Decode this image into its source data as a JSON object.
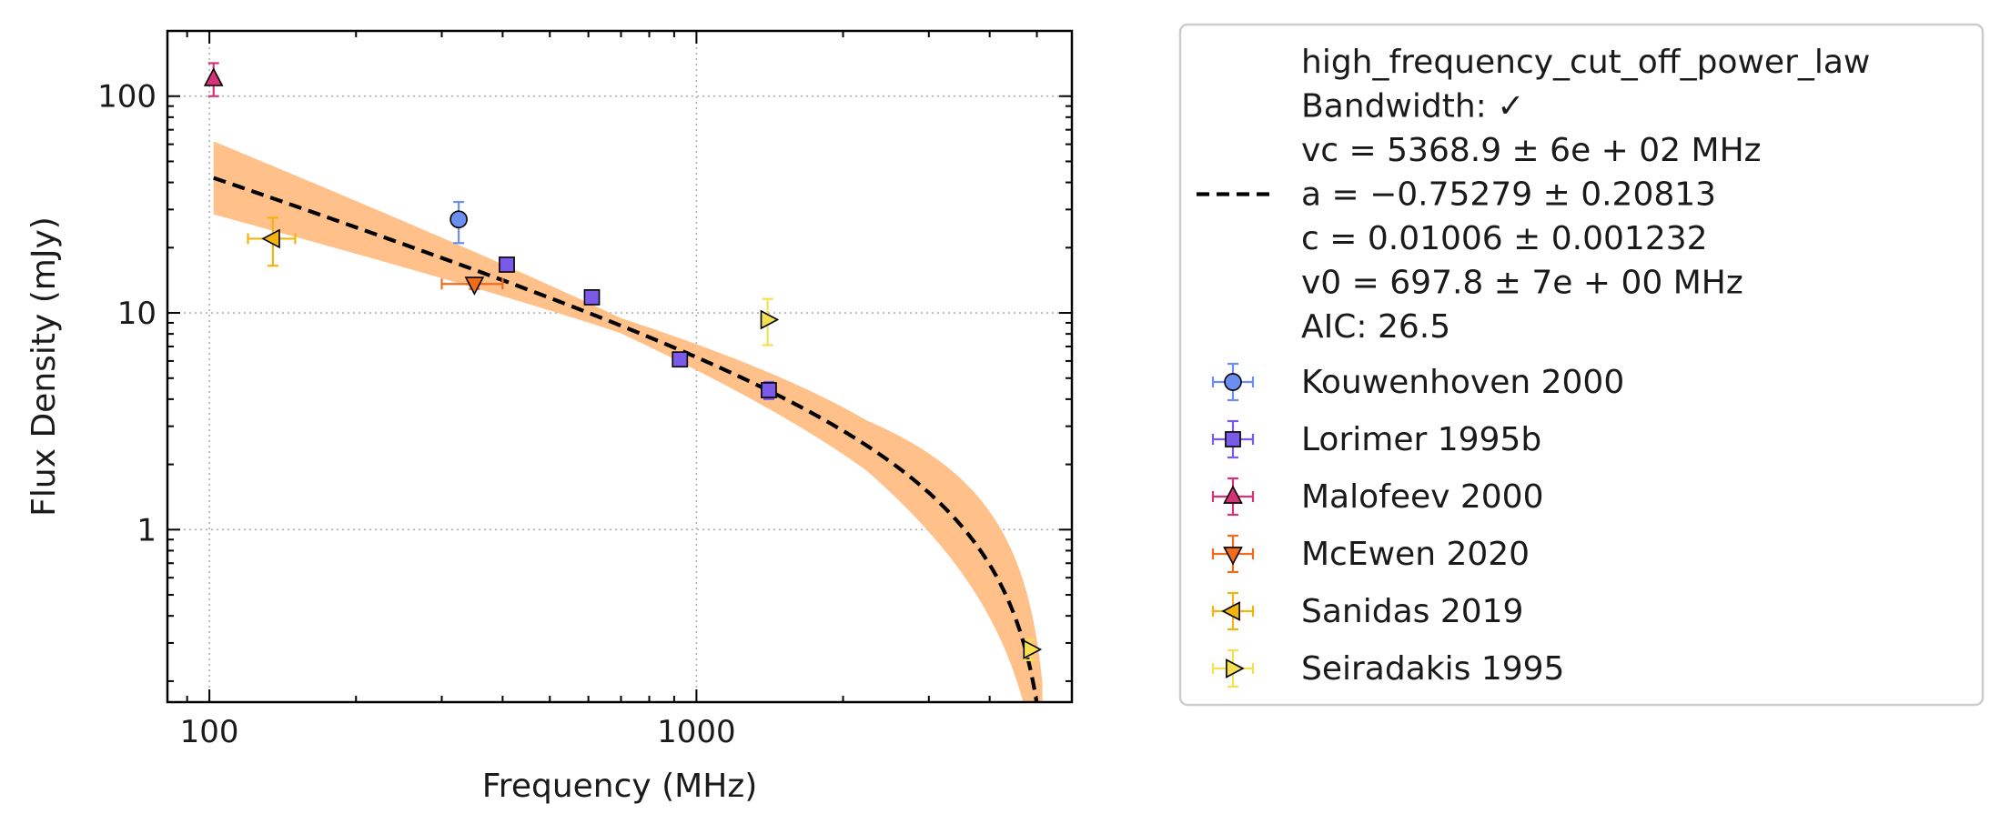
{
  "chart_data": {
    "type": "scatter",
    "xlabel": "Frequency (MHz)",
    "ylabel": "Flux Density (mJy)",
    "x_scale": "log",
    "y_scale": "log",
    "xlim": [
      82,
      5900
    ],
    "ylim": [
      0.16,
      200
    ],
    "grid": true,
    "legend_position": "outside-right",
    "x_ticks": [
      {
        "value": 100,
        "label": "100"
      },
      {
        "value": 1000,
        "label": "1000"
      }
    ],
    "y_ticks": [
      {
        "value": 1,
        "label": "1"
      },
      {
        "value": 10,
        "label": "10"
      },
      {
        "value": 100,
        "label": "100"
      }
    ],
    "fit": {
      "model": "high_frequency_cut_off_power_law",
      "vc": 5368.9,
      "a": -0.75279,
      "c": 0.01006,
      "v0": 697.8,
      "legend_lines": [
        "high_frequency_cut_off_power_law",
        "Bandwidth: ✓",
        "vc = 5368.9 ± 6e + 02 MHz",
        "a = −0.75279 ± 0.20813",
        "c = 0.01006 ± 0.001232",
        "v0 = 697.8 ± 7e + 00 MHz",
        "AIC: 26.5"
      ],
      "line_color": "#000000",
      "band_color": "#ffc08a"
    },
    "series": [
      {
        "name": "Kouwenhoven 2000",
        "marker": "circle",
        "color": "#6a8ff0",
        "ecolor": "#6a8ff0",
        "points": [
          {
            "x": 325,
            "y": 27,
            "yerr": [
              6,
              5.5
            ],
            "xerr": [
              0,
              0
            ]
          }
        ]
      },
      {
        "name": "Lorimer 1995b",
        "marker": "square",
        "color": "#7a5ae6",
        "ecolor": "#7a5ae6",
        "points": [
          {
            "x": 408,
            "y": 16.7,
            "yerr": [
              0.8,
              0.8
            ],
            "xerr": [
              0,
              0
            ]
          },
          {
            "x": 610,
            "y": 11.8,
            "yerr": [
              0.6,
              0.6
            ],
            "xerr": [
              0,
              0
            ]
          },
          {
            "x": 925,
            "y": 6.1,
            "yerr": [
              0.3,
              0.3
            ],
            "xerr": [
              0,
              0
            ]
          },
          {
            "x": 1408,
            "y": 4.4,
            "yerr": [
              0.4,
              0.4
            ],
            "xerr": [
              0,
              0
            ]
          }
        ]
      },
      {
        "name": "Malofeev 2000",
        "marker": "triangle-up",
        "color": "#d6327a",
        "ecolor": "#d6327a",
        "points": [
          {
            "x": 102,
            "y": 120,
            "yerr": [
              20,
              22
            ],
            "xerr": [
              0,
              0
            ]
          }
        ]
      },
      {
        "name": "McEwen 2020",
        "marker": "triangle-down",
        "color": "#f26b1d",
        "ecolor": "#f26b1d",
        "points": [
          {
            "x": 350,
            "y": 13.6,
            "yerr": [
              0.7,
              0.7
            ],
            "xerr": [
              50,
              50
            ]
          }
        ]
      },
      {
        "name": "Sanidas 2019",
        "marker": "triangle-left",
        "color": "#f5b30f",
        "ecolor": "#f5b30f",
        "points": [
          {
            "x": 135,
            "y": 22,
            "yerr": [
              5.5,
              5.5
            ],
            "xerr": [
              15,
              15
            ]
          }
        ]
      },
      {
        "name": "Seiradakis 1995",
        "marker": "triangle-right",
        "color": "#f5e050",
        "ecolor": "#f5e050",
        "points": [
          {
            "x": 1400,
            "y": 9.3,
            "yerr": [
              2.2,
              2.3
            ],
            "xerr": [
              0,
              0
            ]
          },
          {
            "x": 4850,
            "y": 0.28,
            "yerr": [
              0.03,
              0.03
            ],
            "xerr": [
              0,
              0
            ]
          }
        ]
      }
    ]
  }
}
